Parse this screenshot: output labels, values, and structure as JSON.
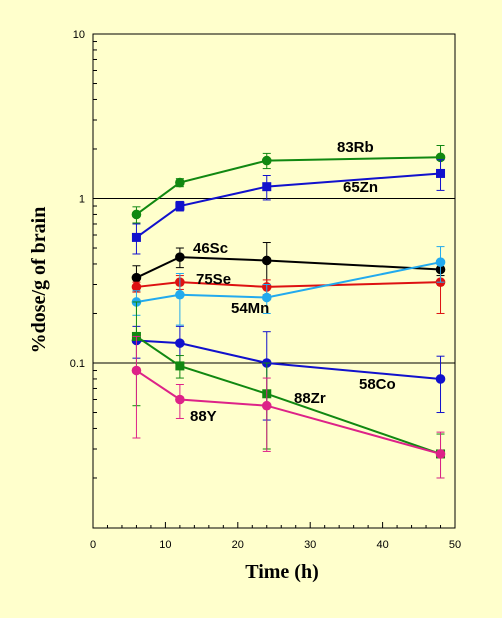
{
  "chart_data": {
    "type": "scatter",
    "title": "",
    "xlabel": "Time (h)",
    "ylabel": "%dose/g of brain",
    "xlim": [
      0,
      50
    ],
    "ylim": [
      0.02,
      10
    ],
    "yscale": "log",
    "x_ticks": [
      0,
      10,
      20,
      30,
      40,
      50
    ],
    "y_ticks": [
      0.1,
      1,
      10
    ],
    "x_tick_labels": [
      "0",
      "10",
      "20",
      "30",
      "40",
      "50"
    ],
    "y_tick_labels": [
      "0.1",
      "1",
      "10"
    ],
    "gridlines_y": [
      0.1,
      1
    ],
    "legend": "none",
    "series": [
      {
        "name": "83Rb",
        "color": "#118811",
        "marker": "circle",
        "x": [
          6,
          12,
          24,
          48
        ],
        "y": [
          0.8,
          1.25,
          1.7,
          1.78
        ],
        "err": [
          0.09,
          0.07,
          0.18,
          0.32
        ]
      },
      {
        "name": "65Zn",
        "color": "#1111cc",
        "marker": "square",
        "x": [
          6,
          12,
          24,
          48
        ],
        "y": [
          0.58,
          0.9,
          1.18,
          1.42
        ],
        "err": [
          0.12,
          0.06,
          0.2,
          0.3
        ]
      },
      {
        "name": "46Sc",
        "color": "#000000",
        "marker": "circle",
        "x": [
          6,
          12,
          24,
          48
        ],
        "y": [
          0.33,
          0.44,
          0.42,
          0.37
        ],
        "err": [
          0.06,
          0.06,
          0.12,
          0.03
        ]
      },
      {
        "name": "75Se",
        "color": "#dd1111",
        "marker": "circle",
        "x": [
          6,
          12,
          24,
          48
        ],
        "y": [
          0.29,
          0.31,
          0.29,
          0.31
        ],
        "err": [
          0.02,
          0.03,
          0.03,
          0.11
        ]
      },
      {
        "name": "54Mn",
        "color": "#22aaee",
        "marker": "circle",
        "x": [
          6,
          12,
          24,
          48
        ],
        "y": [
          0.235,
          0.26,
          0.25,
          0.41
        ],
        "err": [
          0.04,
          0.09,
          0.05,
          0.1
        ]
      },
      {
        "name": "58Co",
        "color": "#1111cc",
        "marker": "circle",
        "x": [
          6,
          12,
          24,
          48
        ],
        "y": [
          0.137,
          0.132,
          0.1,
          0.08
        ],
        "err": [
          0.03,
          0.035,
          0.055,
          0.03
        ]
      },
      {
        "name": "88Zr",
        "color": "#118811",
        "marker": "square",
        "x": [
          6,
          12,
          24,
          48
        ],
        "y": [
          0.145,
          0.096,
          0.065,
          0.028
        ],
        "err": [
          0.09,
          0.015,
          0.035,
          0.009
        ]
      },
      {
        "name": "88Y",
        "color": "#dd2288",
        "marker": "circle",
        "x": [
          6,
          12,
          24,
          48
        ],
        "y": [
          0.09,
          0.06,
          0.055,
          0.028
        ],
        "err": [
          0.055,
          0.014,
          0.026,
          0.01
        ]
      }
    ]
  }
}
